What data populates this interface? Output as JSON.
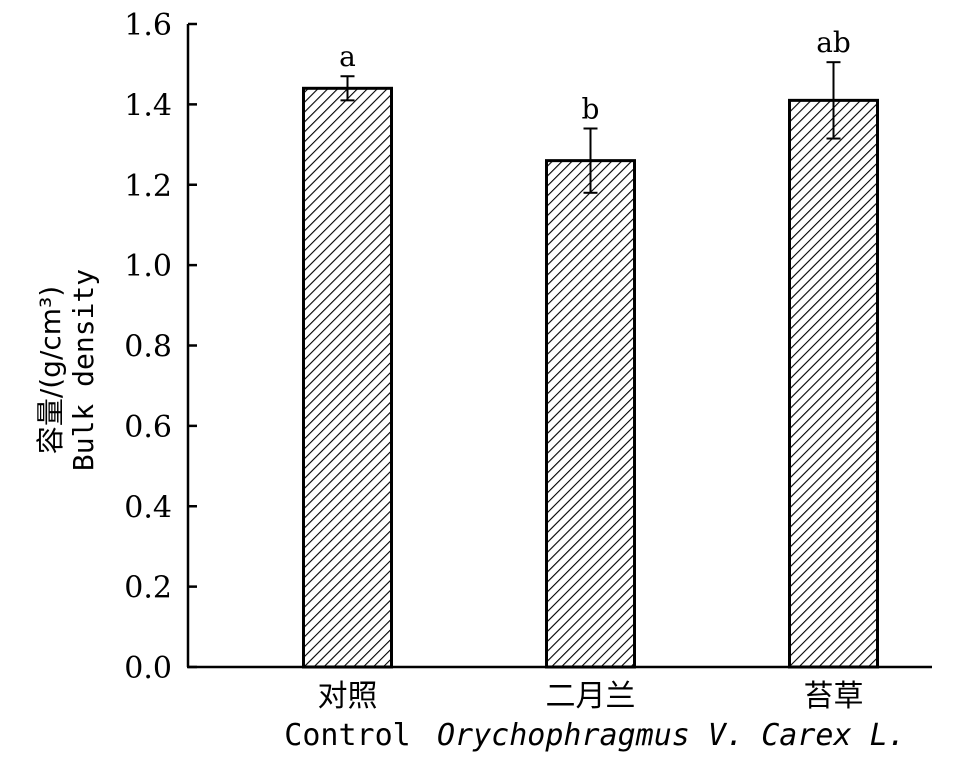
{
  "chart_data": {
    "type": "bar",
    "categories": [
      {
        "cn": "对照",
        "en": "Control",
        "italic": false
      },
      {
        "cn": "二月兰",
        "en": "Orychophragmus V.",
        "italic": true
      },
      {
        "cn": "苔草",
        "en": "Carex L.",
        "italic": true
      }
    ],
    "values": [
      1.44,
      1.26,
      1.41
    ],
    "errors": [
      0.03,
      0.08,
      0.095
    ],
    "significance": [
      "a",
      "b",
      "ab"
    ],
    "ylabel_cn": "容量/(g/cm³)",
    "ylabel_en": "Bulk density",
    "ylim": [
      0.0,
      1.6
    ],
    "yticks": [
      "0.0",
      "0.2",
      "0.4",
      "0.6",
      "0.8",
      "1.0",
      "1.2",
      "1.4",
      "1.6"
    ],
    "bar_fill": "hatched",
    "grid": false
  }
}
